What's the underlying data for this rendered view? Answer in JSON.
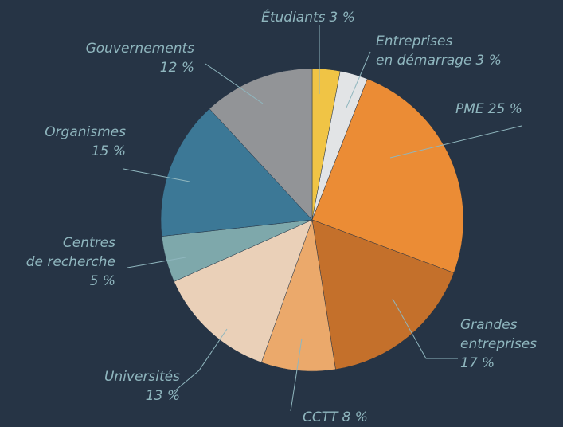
{
  "chart_data": {
    "type": "pie",
    "categories": [
      [
        "Étudiants"
      ],
      [
        "Entreprises",
        "en démarrage"
      ],
      [
        "PME"
      ],
      [
        "Grandes",
        "entreprises"
      ],
      [
        "CCTT"
      ],
      [
        "Universités"
      ],
      [
        "Centres",
        "de recherche"
      ],
      [
        "Organismes"
      ],
      [
        "Gouvernements"
      ]
    ],
    "values": [
      3,
      3,
      25,
      17,
      8,
      13,
      5,
      15,
      12
    ],
    "value_labels": [
      "3 %",
      "3 %",
      "25 %",
      "17 %",
      "8 %",
      "13 %",
      "5 %",
      "15 %",
      "12 %"
    ],
    "colors": [
      "#f0c445",
      "#e2e4e6",
      "#eb8c35",
      "#c4702b",
      "#eba96b",
      "#ead0b8",
      "#7ea8ab",
      "#3c7896",
      "#929497"
    ]
  }
}
